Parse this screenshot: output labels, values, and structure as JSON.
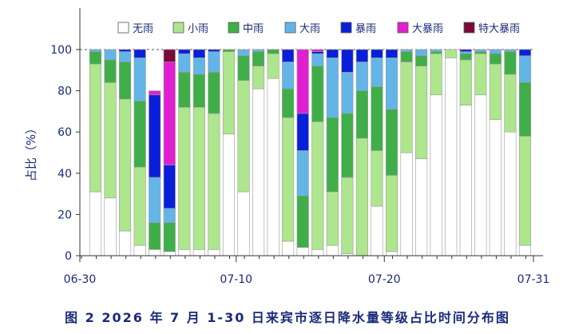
{
  "caption": "图 2 2026 年 7 月 1-30 日来宾市逐日降水量等级占比时间分布图",
  "chart_data": {
    "type": "bar",
    "stacked": true,
    "title": "",
    "xlabel": "",
    "ylabel": "占比（%）",
    "ylim": [
      0,
      100
    ],
    "yticks": [
      0,
      20,
      40,
      60,
      80,
      100
    ],
    "xtick_labels": [
      "06-30",
      "07-10",
      "07-20",
      "07-31"
    ],
    "legend_position": "top",
    "categories": [
      "07-01",
      "07-02",
      "07-03",
      "07-04",
      "07-05",
      "07-06",
      "07-07",
      "07-08",
      "07-09",
      "07-10",
      "07-11",
      "07-12",
      "07-13",
      "07-14",
      "07-15",
      "07-16",
      "07-17",
      "07-18",
      "07-19",
      "07-20",
      "07-21",
      "07-22",
      "07-23",
      "07-24",
      "07-25",
      "07-26",
      "07-27",
      "07-28",
      "07-29",
      "07-30"
    ],
    "series": [
      {
        "name": "无雨",
        "color": "#ffffff",
        "values": [
          31,
          28,
          12,
          5,
          3,
          2,
          3,
          3,
          3,
          59,
          31,
          81,
          86,
          7,
          4,
          3,
          5,
          1,
          0,
          24,
          2,
          50,
          47,
          78,
          96,
          73,
          78,
          66,
          60,
          5
        ]
      },
      {
        "name": "小雨",
        "color": "#aee68d",
        "values": [
          62,
          56,
          64,
          38,
          0,
          0,
          69,
          69,
          66,
          40,
          54,
          11,
          12,
          60,
          0,
          62,
          26,
          37,
          57,
          27,
          37,
          44,
          45,
          20,
          4,
          22,
          20,
          27,
          28,
          53
        ]
      },
      {
        "name": "中雨",
        "color": "#3fae49",
        "values": [
          6,
          11,
          18,
          32,
          13,
          14,
          17,
          16,
          20,
          1,
          12,
          7,
          2,
          14,
          25,
          27,
          36,
          31,
          23,
          31,
          32,
          5,
          5,
          1,
          0,
          3,
          1,
          5,
          11,
          26
        ]
      },
      {
        "name": "大雨",
        "color": "#63b5e8",
        "values": [
          1,
          5,
          5,
          21,
          22,
          7,
          9,
          8,
          10,
          0,
          3,
          1,
          0,
          13,
          22,
          6,
          29,
          20,
          14,
          14,
          25,
          1,
          3,
          1,
          0,
          1,
          1,
          2,
          1,
          13
        ]
      },
      {
        "name": "暴雨",
        "color": "#0a1fd9",
        "values": [
          0,
          0,
          1,
          4,
          40,
          21,
          2,
          4,
          1,
          0,
          0,
          0,
          0,
          6,
          18,
          1,
          4,
          11,
          6,
          4,
          4,
          0,
          0,
          0,
          0,
          1,
          0,
          0,
          0,
          3
        ]
      },
      {
        "name": "大暴雨",
        "color": "#e020d0",
        "values": [
          0,
          0,
          0,
          0,
          2,
          50,
          0,
          0,
          0,
          0,
          0,
          0,
          0,
          0,
          31,
          1,
          0,
          0,
          0,
          0,
          0,
          0,
          0,
          0,
          0,
          0,
          0,
          0,
          0,
          0
        ]
      },
      {
        "name": "特大暴雨",
        "color": "#7a0a3a",
        "values": [
          0,
          0,
          0,
          0,
          0,
          6,
          0,
          0,
          0,
          0,
          0,
          0,
          0,
          0,
          0,
          0,
          0,
          0,
          0,
          0,
          0,
          0,
          0,
          0,
          0,
          0,
          0,
          0,
          0,
          0
        ]
      }
    ]
  }
}
